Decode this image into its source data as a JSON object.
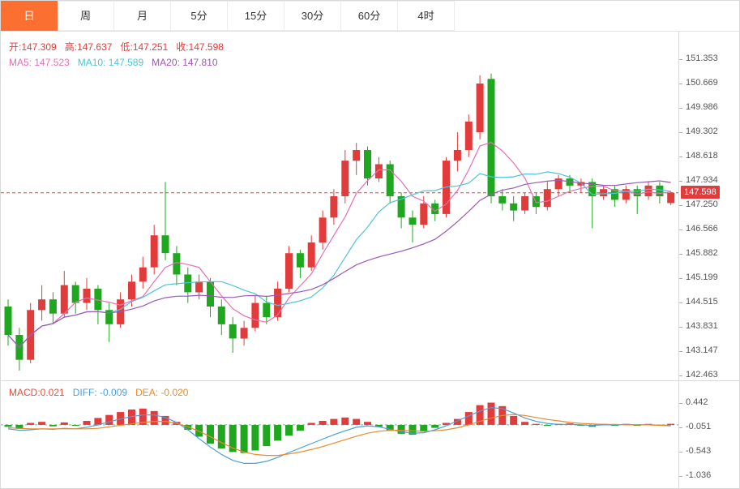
{
  "tabs": [
    {
      "label": "日",
      "active": true
    },
    {
      "label": "周",
      "active": false
    },
    {
      "label": "月",
      "active": false
    },
    {
      "label": "5分",
      "active": false
    },
    {
      "label": "15分",
      "active": false
    },
    {
      "label": "30分",
      "active": false
    },
    {
      "label": "60分",
      "active": false
    },
    {
      "label": "4时",
      "active": false
    }
  ],
  "main_chart": {
    "ohlc_legend": {
      "open_label": "开:",
      "open_value": "147.309",
      "high_label": "高:",
      "high_value": "147.637",
      "low_label": "低:",
      "low_value": "147.251",
      "close_label": "收:",
      "close_value": "147.598"
    },
    "ma_legend": {
      "ma5_label": "MA5:",
      "ma5_value": "147.523",
      "ma10_label": "MA10:",
      "ma10_value": "147.589",
      "ma20_label": "MA20:",
      "ma20_value": "147.810"
    },
    "y_axis_labels": [
      "151.353",
      "150.669",
      "149.986",
      "149.302",
      "148.618",
      "147.934",
      "147.250",
      "146.566",
      "145.882",
      "145.199",
      "144.515",
      "143.831",
      "143.147",
      "142.463"
    ],
    "last_price": "147.598"
  },
  "macd_panel": {
    "legend": {
      "macd_label": "MACD:",
      "macd_value": "0.021",
      "diff_label": "DIFF:",
      "diff_value": "-0.009",
      "dea_label": "DEA:",
      "dea_value": "-0.020"
    },
    "y_axis_labels": [
      "0.442",
      "-0.051",
      "-0.543",
      "-1.036"
    ]
  },
  "colors": {
    "up": "#e23b3b",
    "down": "#1fa71f",
    "ma5": "#e66fb2",
    "ma10": "#4fc3d9",
    "ma20": "#9b59b6",
    "macd": "#e0523e",
    "diff": "#4a9fdc",
    "dea": "#e78b2f",
    "active_tab": "#fb7030",
    "zero_line": "#53c6c6",
    "last_price_line": "#e23b3b"
  },
  "chart_data": [
    {
      "type": "candlestick",
      "title": "",
      "x_count": 60,
      "y_axis_ticks": [
        151.353,
        150.669,
        149.986,
        149.302,
        148.618,
        147.934,
        147.25,
        146.566,
        145.882,
        145.199,
        144.515,
        143.831,
        143.147,
        142.463
      ],
      "last_price": 147.598,
      "overlays": [
        {
          "name": "MA5",
          "period": 5,
          "color_key": "ma5",
          "last_value": 147.523
        },
        {
          "name": "MA10",
          "period": 10,
          "color_key": "ma10",
          "last_value": 147.589
        },
        {
          "name": "MA20",
          "period": 20,
          "color_key": "ma20",
          "last_value": 147.81
        }
      ],
      "ohlc": [
        [
          144.4,
          144.6,
          143.3,
          143.6
        ],
        [
          143.6,
          143.8,
          142.6,
          142.9
        ],
        [
          142.9,
          144.5,
          142.8,
          144.3
        ],
        [
          144.3,
          145.0,
          144.0,
          144.6
        ],
        [
          144.6,
          144.8,
          143.9,
          144.2
        ],
        [
          144.2,
          145.4,
          144.1,
          145.0
        ],
        [
          145.0,
          145.1,
          144.2,
          144.5
        ],
        [
          144.5,
          145.2,
          144.3,
          144.9
        ],
        [
          144.9,
          145.0,
          143.9,
          144.3
        ],
        [
          144.3,
          144.5,
          143.4,
          143.9
        ],
        [
          143.9,
          144.8,
          143.8,
          144.6
        ],
        [
          144.6,
          145.3,
          144.4,
          145.1
        ],
        [
          145.1,
          145.8,
          144.9,
          145.5
        ],
        [
          145.5,
          146.7,
          145.3,
          146.4
        ],
        [
          146.4,
          147.9,
          145.7,
          145.9
        ],
        [
          145.9,
          146.1,
          145.0,
          145.3
        ],
        [
          145.3,
          145.5,
          144.5,
          144.8
        ],
        [
          144.8,
          145.3,
          144.6,
          145.1
        ],
        [
          145.1,
          145.2,
          144.1,
          144.4
        ],
        [
          144.4,
          144.6,
          143.6,
          143.9
        ],
        [
          143.9,
          144.1,
          143.1,
          143.5
        ],
        [
          143.5,
          144.0,
          143.3,
          143.8
        ],
        [
          143.8,
          144.7,
          143.7,
          144.5
        ],
        [
          144.5,
          144.7,
          143.9,
          144.1
        ],
        [
          144.1,
          145.1,
          144.0,
          144.9
        ],
        [
          144.9,
          146.1,
          144.8,
          145.9
        ],
        [
          145.9,
          146.0,
          145.2,
          145.5
        ],
        [
          145.5,
          146.4,
          145.4,
          146.2
        ],
        [
          146.2,
          147.1,
          146.0,
          146.9
        ],
        [
          146.9,
          147.7,
          146.7,
          147.5
        ],
        [
          147.5,
          148.8,
          147.3,
          148.5
        ],
        [
          148.5,
          149.0,
          148.1,
          148.8
        ],
        [
          148.8,
          148.9,
          147.8,
          148.0
        ],
        [
          148.0,
          148.6,
          147.9,
          148.4
        ],
        [
          148.4,
          148.5,
          147.3,
          147.5
        ],
        [
          147.5,
          147.6,
          146.6,
          146.9
        ],
        [
          146.9,
          147.1,
          146.2,
          146.7
        ],
        [
          146.7,
          147.5,
          146.6,
          147.3
        ],
        [
          147.3,
          147.4,
          146.8,
          147.0
        ],
        [
          147.0,
          148.6,
          146.9,
          148.5
        ],
        [
          148.5,
          149.3,
          148.2,
          148.8
        ],
        [
          148.8,
          149.8,
          148.6,
          149.6
        ],
        [
          149.3,
          150.9,
          149.1,
          150.669
        ],
        [
          150.8,
          150.95,
          147.3,
          147.5
        ],
        [
          147.5,
          147.7,
          147.1,
          147.3
        ],
        [
          147.3,
          147.5,
          146.8,
          147.1
        ],
        [
          147.1,
          147.6,
          147.0,
          147.5
        ],
        [
          147.5,
          147.6,
          147.0,
          147.2
        ],
        [
          147.2,
          147.9,
          147.1,
          147.7
        ],
        [
          147.7,
          148.1,
          147.5,
          148.0
        ],
        [
          148.0,
          148.1,
          147.6,
          147.8
        ],
        [
          147.8,
          148.0,
          147.6,
          147.9
        ],
        [
          147.9,
          148.0,
          146.6,
          147.5
        ],
        [
          147.5,
          147.8,
          147.4,
          147.7
        ],
        [
          147.7,
          147.8,
          147.2,
          147.4
        ],
        [
          147.4,
          147.8,
          147.3,
          147.7
        ],
        [
          147.7,
          147.8,
          147.0,
          147.5
        ],
        [
          147.5,
          147.9,
          147.4,
          147.8
        ],
        [
          147.8,
          147.9,
          147.3,
          147.5
        ],
        [
          147.309,
          147.637,
          147.251,
          147.598
        ]
      ]
    },
    {
      "type": "macd",
      "y_axis_ticks": [
        0.442,
        -0.051,
        -0.543,
        -1.036
      ],
      "histogram": [
        -0.04,
        -0.08,
        0.04,
        0.06,
        -0.03,
        0.05,
        -0.02,
        0.08,
        0.14,
        0.2,
        0.26,
        0.31,
        0.33,
        0.28,
        0.18,
        0.06,
        -0.1,
        -0.24,
        -0.38,
        -0.48,
        -0.55,
        -0.57,
        -0.52,
        -0.43,
        -0.32,
        -0.22,
        -0.12,
        0.04,
        0.08,
        0.12,
        0.15,
        0.12,
        0.06,
        -0.04,
        -0.12,
        -0.18,
        -0.2,
        -0.14,
        -0.06,
        0.04,
        0.12,
        0.26,
        0.4,
        0.45,
        0.38,
        0.18,
        0.06,
        0.02,
        -0.02,
        0.02,
        0.03,
        -0.02,
        -0.04,
        0.02,
        -0.02,
        0.02,
        -0.02,
        0.02,
        -0.01,
        0.021
      ],
      "diff": [
        -0.08,
        -0.11,
        -0.1,
        -0.08,
        -0.09,
        -0.07,
        -0.08,
        -0.05,
        0.0,
        0.06,
        0.12,
        0.17,
        0.2,
        0.2,
        0.15,
        0.05,
        -0.1,
        -0.28,
        -0.45,
        -0.6,
        -0.72,
        -0.78,
        -0.78,
        -0.74,
        -0.66,
        -0.56,
        -0.47,
        -0.38,
        -0.29,
        -0.2,
        -0.12,
        -0.05,
        -0.02,
        -0.04,
        -0.09,
        -0.14,
        -0.17,
        -0.16,
        -0.1,
        -0.02,
        0.08,
        0.18,
        0.28,
        0.35,
        0.33,
        0.24,
        0.14,
        0.07,
        0.03,
        0.01,
        0.01,
        0.0,
        -0.01,
        0.0,
        0.0,
        0.01,
        0.0,
        0.0,
        -0.005,
        -0.009
      ],
      "dea": [
        -0.06,
        -0.07,
        -0.08,
        -0.08,
        -0.08,
        -0.08,
        -0.08,
        -0.08,
        -0.07,
        -0.04,
        -0.01,
        0.02,
        0.05,
        0.07,
        0.07,
        0.03,
        -0.04,
        -0.13,
        -0.24,
        -0.36,
        -0.47,
        -0.55,
        -0.6,
        -0.62,
        -0.62,
        -0.59,
        -0.55,
        -0.5,
        -0.44,
        -0.37,
        -0.3,
        -0.23,
        -0.17,
        -0.13,
        -0.11,
        -0.11,
        -0.12,
        -0.13,
        -0.12,
        -0.1,
        -0.06,
        0.0,
        0.07,
        0.14,
        0.19,
        0.21,
        0.19,
        0.15,
        0.11,
        0.08,
        0.05,
        0.03,
        0.02,
        0.01,
        0.01,
        0.0,
        0.0,
        0.0,
        -0.01,
        -0.02
      ]
    }
  ]
}
